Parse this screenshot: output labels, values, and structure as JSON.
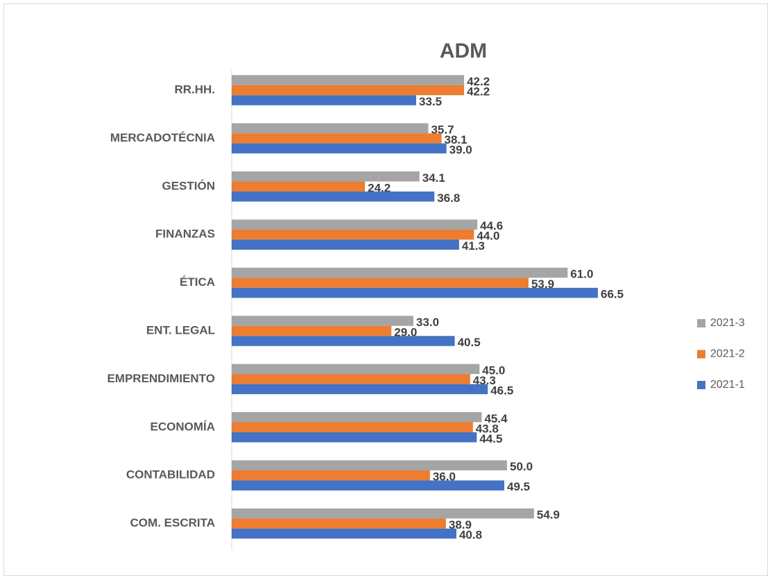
{
  "chart_data": {
    "type": "bar",
    "orientation": "horizontal",
    "title": "ADM",
    "categories": [
      "RR.HH.",
      "MERCADOTÉCNIA",
      "GESTIÓN",
      "FINANZAS",
      "ÉTICA",
      "ENT. LEGAL",
      "EMPRENDIMIENTO",
      "ECONOMÍA",
      "CONTABILIDAD",
      "COM. ESCRITA"
    ],
    "series": [
      {
        "name": "2021-3",
        "color": "#a5a5a5",
        "values": [
          42.2,
          35.7,
          34.1,
          44.6,
          61.0,
          33.0,
          45.0,
          45.4,
          50.0,
          54.9
        ],
        "value_labels": [
          "42.2",
          "35.7",
          "34.1",
          "44.6",
          "61.0",
          "33.0",
          "45.0",
          "45.4",
          "50.0",
          "54.9"
        ]
      },
      {
        "name": "2021-2",
        "color": "#ed7d31",
        "values": [
          42.2,
          38.1,
          24.2,
          44.0,
          53.9,
          29.0,
          43.3,
          43.8,
          36.0,
          38.9
        ],
        "value_labels": [
          "42.2",
          "38.1",
          "24.2",
          "44.0",
          "53.9",
          "29.0",
          "43.3",
          "43.8",
          "36.0",
          "38.9"
        ]
      },
      {
        "name": "2021-1",
        "color": "#4472c4",
        "values": [
          33.5,
          39.0,
          36.8,
          41.3,
          66.5,
          40.5,
          46.5,
          44.5,
          49.5,
          40.8
        ],
        "value_labels": [
          "33.5",
          "39.0",
          "36.8",
          "41.3",
          "66.5",
          "40.5",
          "46.5",
          "44.5",
          "49.5",
          "40.8"
        ]
      }
    ],
    "legend": "right"
  }
}
